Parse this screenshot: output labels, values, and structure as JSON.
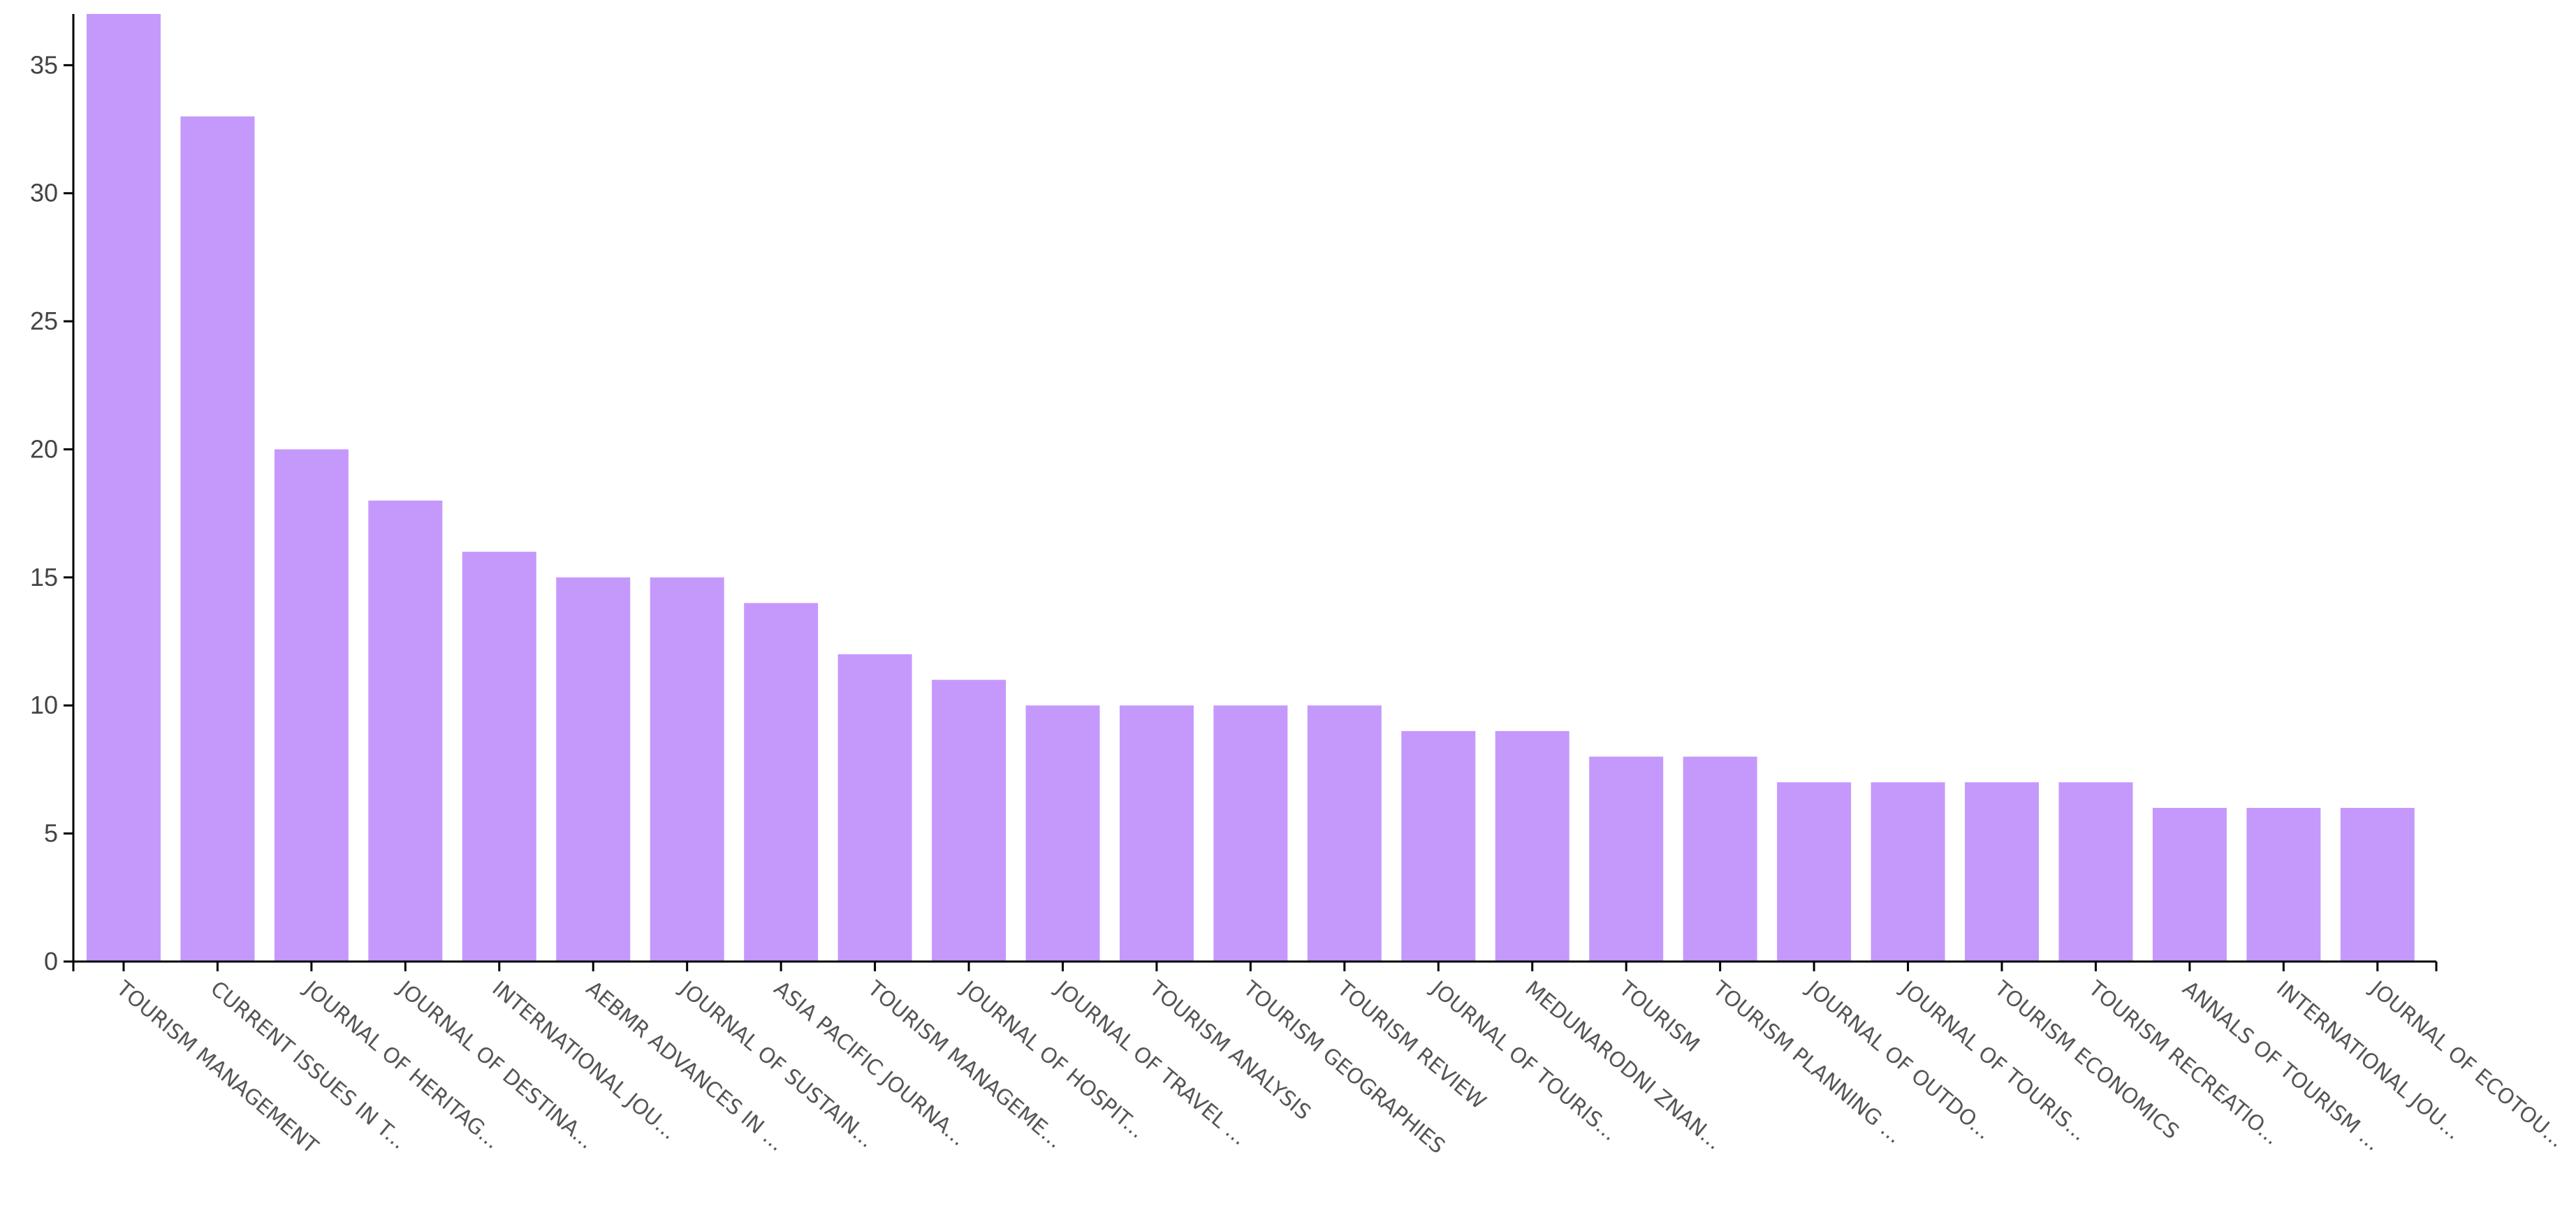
{
  "chart_data": {
    "type": "bar",
    "categories": [
      "TOURISM MANAGEMENT",
      "CURRENT ISSUES IN T...",
      "JOURNAL OF HERITAG...",
      "JOURNAL OF DESTINA...",
      "INTERNATIONAL JOU...",
      "AEBMR ADVANCES IN ...",
      "JOURNAL OF SUSTAIN...",
      "ASIA PACIFIC JOURNA...",
      "TOURISM MANAGEME...",
      "JOURNAL OF HOSPIT...",
      "JOURNAL OF TRAVEL ...",
      "TOURISM ANALYSIS",
      "TOURISM GEOGRAPHIES",
      "TOURISM REVIEW",
      "JOURNAL OF TOURIS...",
      "MEDUNARODNI ZNAN...",
      "TOURISM",
      "TOURISM PLANNING ...",
      "JOURNAL OF OUTDO...",
      "JOURNAL OF TOURIS...",
      "TOURISM ECONOMICS",
      "TOURISM RECREATIO...",
      "ANNALS OF TOURISM ...",
      "INTERNATIONAL JOU...",
      "JOURNAL OF ECOTOU..."
    ],
    "values": [
      37,
      33,
      20,
      18,
      16,
      15,
      15,
      14,
      12,
      11,
      10,
      10,
      10,
      10,
      9,
      9,
      8,
      8,
      7,
      7,
      7,
      7,
      6,
      6,
      6
    ],
    "ylim": [
      0,
      37
    ],
    "yticks": [
      "0",
      "5",
      "10",
      "15",
      "20",
      "25",
      "30",
      "35"
    ],
    "bar_color": "#c599fc",
    "grid": false,
    "legend": "none"
  }
}
